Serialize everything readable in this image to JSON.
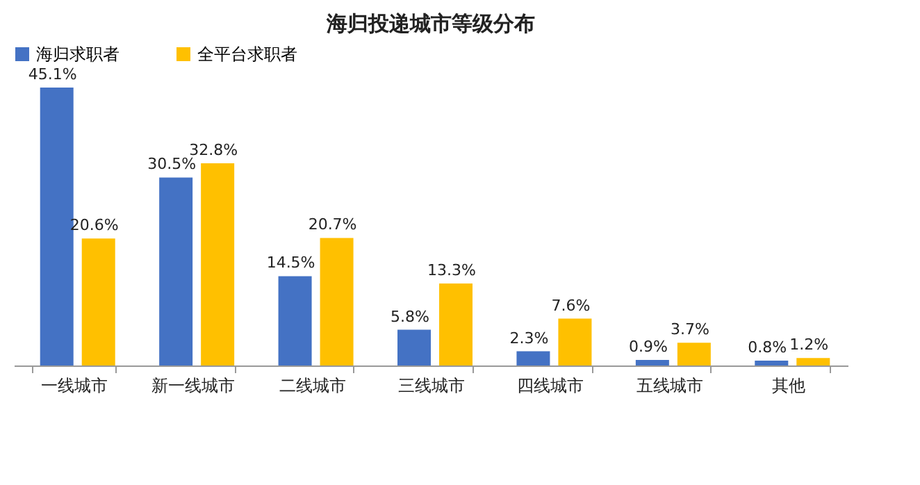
{
  "chart_data": {
    "type": "bar",
    "title": "海归投递城市等级分布",
    "categories": [
      "一线城市",
      "新一线城市",
      "二线城市",
      "三线城市",
      "四线城市",
      "五线城市",
      "其他"
    ],
    "series": [
      {
        "name": "海归求职者",
        "color": "#4472c4",
        "values": [
          45.1,
          30.5,
          14.5,
          5.8,
          2.3,
          0.9,
          0.8
        ],
        "value_labels": [
          "45.1%",
          "30.5%",
          "14.5%",
          "5.8%",
          "2.3%",
          "0.9%",
          "0.8%"
        ]
      },
      {
        "name": "全平台求职者",
        "color": "#ffc000",
        "values": [
          20.6,
          32.8,
          20.7,
          13.3,
          7.6,
          3.7,
          1.2
        ],
        "value_labels": [
          "20.6%",
          "32.8%",
          "20.7%",
          "13.3%",
          "7.6%",
          "3.7%",
          "1.2%"
        ]
      }
    ],
    "legend": "top"
  }
}
